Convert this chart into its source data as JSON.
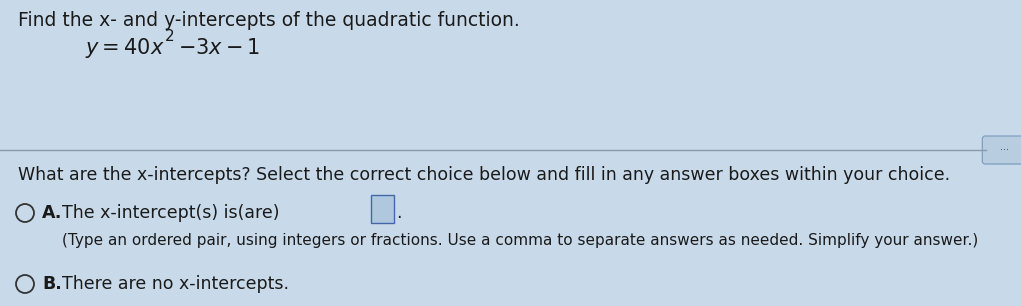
{
  "bg_color": "#c8daea",
  "text_color": "#1a1a1a",
  "title_text": "Find the x- and y-intercepts of the quadratic function.",
  "divider_color": "#8899aa",
  "question_text": "What are the x-intercepts? Select the correct choice below and fill in any answer boxes within your choice.",
  "option_a_bold": "A.",
  "option_a_text": "The x-intercept(s) is(are)",
  "option_a_subtext": "(Type an ordered pair, using integers or fractions. Use a comma to separate answers as needed. Simplify your answer.)",
  "option_b_bold": "B.",
  "option_b_text": "There are no x-intercepts.",
  "title_fontsize": 13.5,
  "equation_fontsize": 15,
  "question_fontsize": 12.5,
  "option_fontsize": 12.5,
  "subtext_fontsize": 11
}
